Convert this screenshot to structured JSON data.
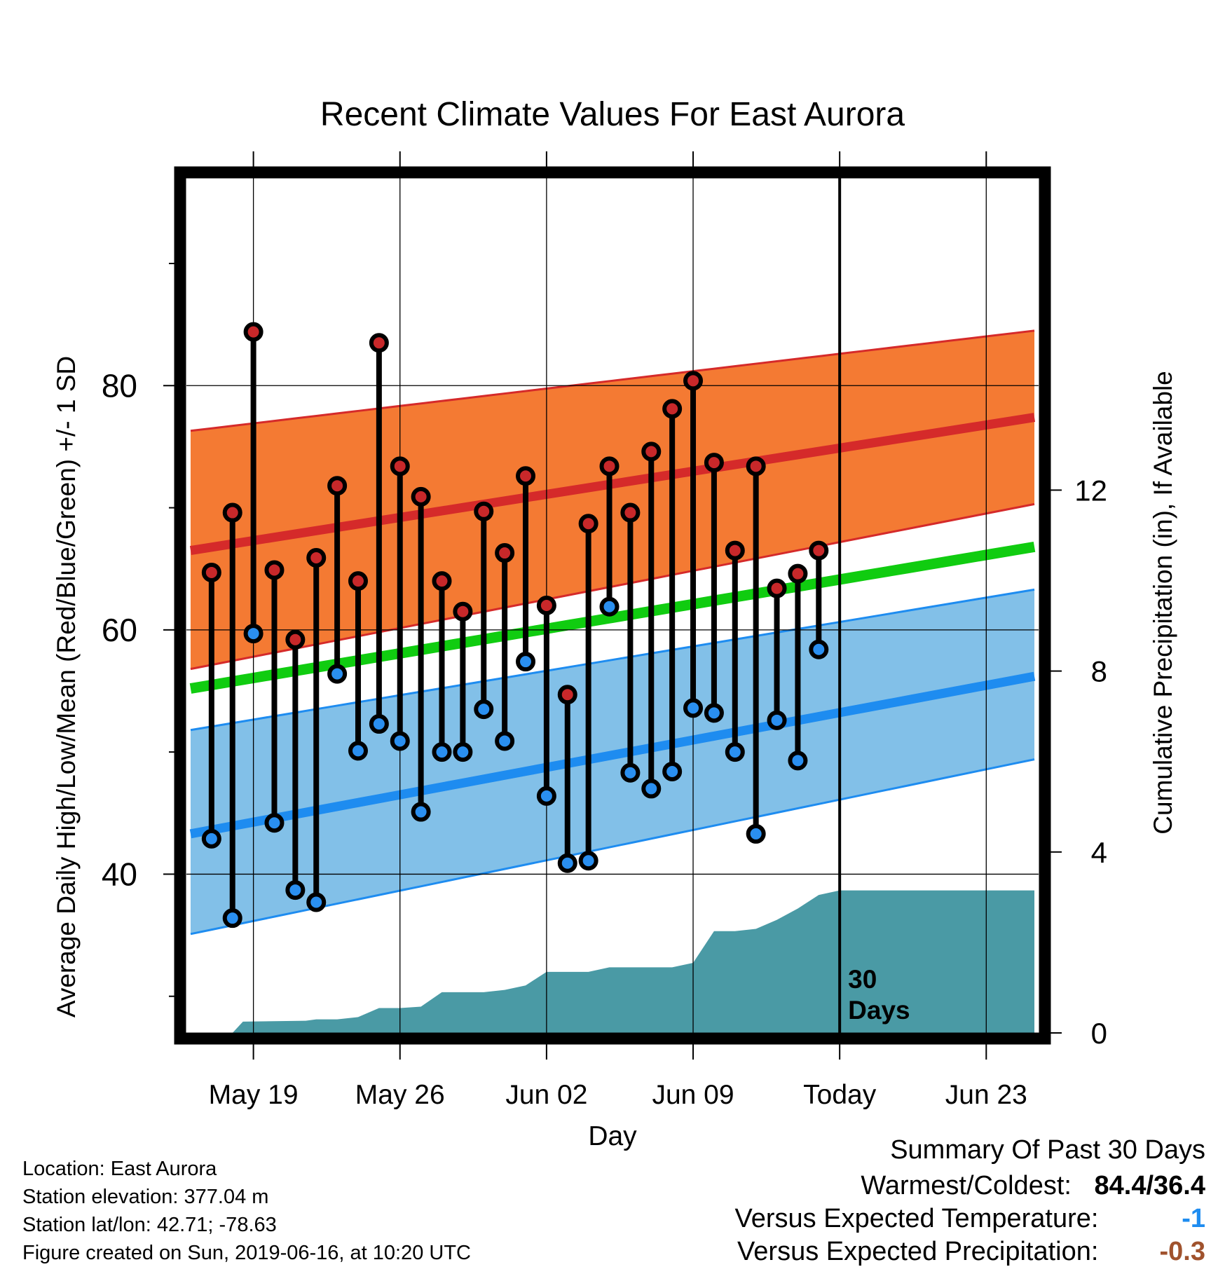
{
  "colors": {
    "high_band": "#f47a33",
    "high_line": "#d52a2a",
    "low_band": "#82c0e8",
    "low_line": "#1e8cf0",
    "mean_line": "#10cc10",
    "precip_fill": "#4a9aa5",
    "dot_high": "#c8282a",
    "dot_low": "#2a8ff0",
    "temp_value": "#1e8cf0",
    "precip_value": "#a0522d"
  },
  "chart_data": {
    "type": "line",
    "title": "Recent Climate Values For East Aurora",
    "xlabel": "Day",
    "ylabel_left": "Average Daily High/Low/Mean (Red/Blue/Green) +/- 1 SD",
    "ylabel_right": "Cumulative Precipitation (in), If Available",
    "x_tick_labels": [
      "May 19",
      "May 26",
      "Jun 02",
      "Jun 09",
      "Today",
      "Jun 23"
    ],
    "x_tick_days": [
      19,
      26,
      33,
      40,
      47,
      54
    ],
    "x_range_days": [
      15.8,
      56.5
    ],
    "y_left_ticks": [
      40,
      60,
      80
    ],
    "y_left_range": [
      27.0,
      97.0
    ],
    "y_right_ticks": [
      0,
      4,
      8,
      12
    ],
    "y_right_per_degree": 0.27,
    "today_day": 47,
    "today_annotation": "30\nDays",
    "daily_days": [
      17,
      18,
      19,
      20,
      21,
      22,
      23,
      24,
      25,
      26,
      27,
      28,
      29,
      30,
      31,
      32,
      33,
      34,
      35,
      36,
      37,
      38,
      39,
      40,
      41,
      42,
      43,
      44,
      45,
      46
    ],
    "daily_high": [
      64.7,
      69.6,
      84.4,
      64.9,
      59.2,
      65.9,
      71.8,
      64.0,
      83.5,
      73.4,
      70.9,
      64.0,
      61.5,
      69.7,
      66.3,
      72.6,
      62.0,
      54.7,
      68.7,
      73.4,
      69.6,
      74.6,
      78.1,
      80.4,
      73.7,
      66.5,
      73.4,
      63.4,
      64.6,
      66.5
    ],
    "daily_low": [
      42.9,
      36.4,
      59.7,
      44.2,
      38.7,
      37.7,
      56.4,
      50.1,
      52.3,
      50.9,
      45.1,
      50.0,
      50.0,
      53.5,
      50.9,
      57.4,
      46.4,
      40.9,
      41.1,
      61.9,
      48.3,
      47.0,
      48.4,
      53.6,
      53.2,
      50.0,
      43.3,
      52.6,
      49.3,
      58.4
    ],
    "normal_x_days": [
      16.0,
      56.3
    ],
    "normal_high": [
      66.5,
      77.4
    ],
    "normal_high_sd_upper": [
      76.3,
      84.5
    ],
    "normal_high_sd_lower": [
      56.8,
      70.3
    ],
    "normal_low": [
      43.3,
      56.2
    ],
    "normal_low_sd_upper": [
      51.8,
      63.3
    ],
    "normal_low_sd_lower": [
      35.1,
      49.4
    ],
    "normal_mean": [
      55.2,
      66.8
    ],
    "precip_cumulative": {
      "x": [
        18.0,
        18.5,
        21.5,
        22.0,
        23.0,
        24.0,
        25.0,
        26.0,
        27.0,
        28.0,
        29.0,
        30.0,
        31.0,
        32.0,
        33.0,
        34.0,
        35.0,
        36.0,
        37.0,
        38.0,
        39.0,
        40.0,
        41.0,
        42.0,
        43.0,
        44.0,
        45.0,
        46.0,
        47.0,
        56.3
      ],
      "y": [
        0.0,
        0.25,
        0.27,
        0.3,
        0.3,
        0.35,
        0.55,
        0.55,
        0.58,
        0.9,
        0.9,
        0.9,
        0.95,
        1.05,
        1.35,
        1.35,
        1.35,
        1.45,
        1.45,
        1.45,
        1.45,
        1.55,
        2.25,
        2.25,
        2.3,
        2.5,
        2.75,
        3.05,
        3.15,
        3.15
      ]
    }
  },
  "footer": {
    "location": "Location: East Aurora",
    "elevation": "Station elevation: 377.04 m",
    "latlon": "Station lat/lon: 42.71; -78.63",
    "created": "Figure created on Sun, 2019-06-16, at 10:20 UTC"
  },
  "summary": {
    "heading": "Summary Of Past 30 Days",
    "warm_cold_label": "Warmest/Coldest:",
    "warm_cold_value": "84.4/36.4",
    "temp_label": "Versus Expected Temperature:",
    "temp_value": "-1",
    "precip_label": "Versus Expected Precipitation:",
    "precip_value": "-0.3"
  }
}
